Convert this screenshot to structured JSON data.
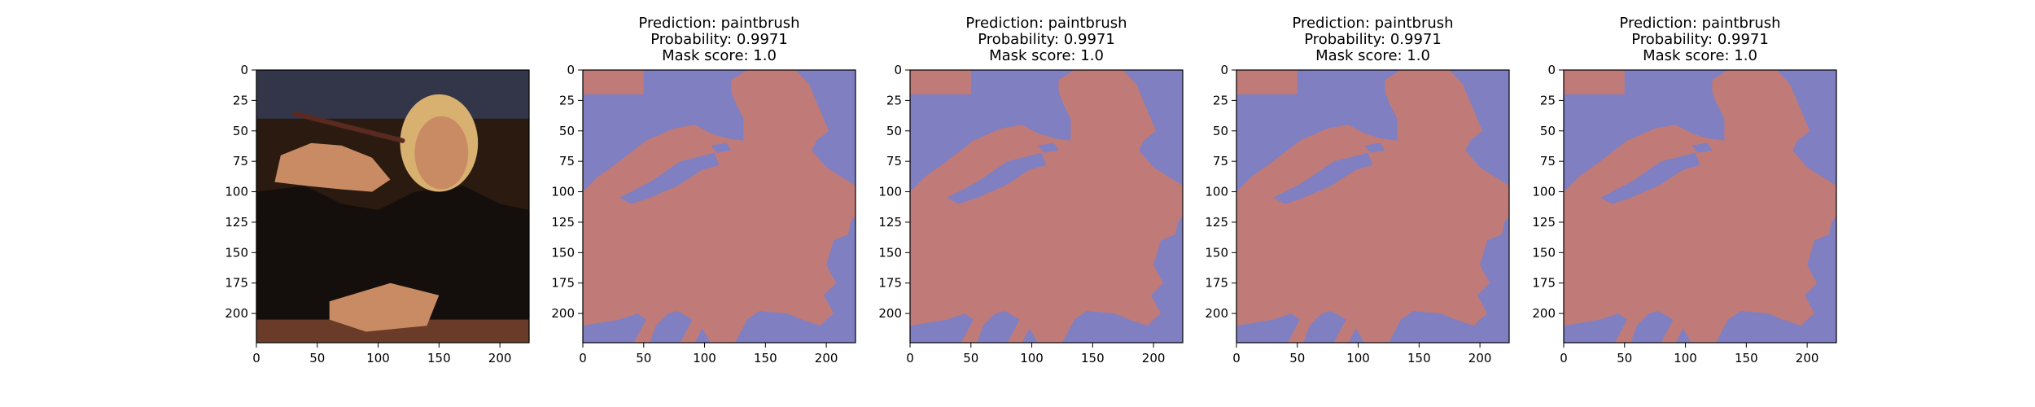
{
  "colors": {
    "mask_foreground": "#c07b79",
    "mask_background": "#7f7fc1",
    "axes_frame": "#000000",
    "photo_background_dark": "#2a1a10",
    "photo_jacket": "#140f0c",
    "photo_skin": "#c98b63",
    "photo_hair": "#d8b070",
    "photo_table": "#6b3b2a"
  },
  "chart_data": [
    {
      "type": "image",
      "content": "photo-woman-with-paintbrush",
      "title": [],
      "xlim": [
        0,
        224
      ],
      "ylim": [
        224,
        0
      ],
      "xticks": [
        0,
        50,
        100,
        150,
        200
      ],
      "yticks": [
        0,
        25,
        50,
        75,
        100,
        125,
        150,
        175,
        200
      ]
    },
    {
      "type": "image",
      "content": "segmentation-mask-overlay",
      "title": [
        "Prediction: paintbrush",
        "Probability: 0.9971",
        "Mask score: 1.0"
      ],
      "xlim": [
        0,
        224
      ],
      "ylim": [
        224,
        0
      ],
      "xticks": [
        0,
        50,
        100,
        150,
        200
      ],
      "yticks": [
        0,
        25,
        50,
        75,
        100,
        125,
        150,
        175,
        200
      ]
    },
    {
      "type": "image",
      "content": "segmentation-mask-overlay",
      "title": [
        "Prediction: paintbrush",
        "Probability: 0.9971",
        "Mask score: 1.0"
      ],
      "xlim": [
        0,
        224
      ],
      "ylim": [
        224,
        0
      ],
      "xticks": [
        0,
        50,
        100,
        150,
        200
      ],
      "yticks": [
        0,
        25,
        50,
        75,
        100,
        125,
        150,
        175,
        200
      ]
    },
    {
      "type": "image",
      "content": "segmentation-mask-overlay",
      "title": [
        "Prediction: paintbrush",
        "Probability: 0.9971",
        "Mask score: 1.0"
      ],
      "xlim": [
        0,
        224
      ],
      "ylim": [
        224,
        0
      ],
      "xticks": [
        0,
        50,
        100,
        150,
        200
      ],
      "yticks": [
        0,
        25,
        50,
        75,
        100,
        125,
        150,
        175,
        200
      ]
    },
    {
      "type": "image",
      "content": "segmentation-mask-overlay",
      "title": [
        "Prediction: paintbrush",
        "Probability: 0.9971",
        "Mask score: 1.0"
      ],
      "xlim": [
        0,
        224
      ],
      "ylim": [
        224,
        0
      ],
      "xticks": [
        0,
        50,
        100,
        150,
        200
      ],
      "yticks": [
        0,
        25,
        50,
        75,
        100,
        125,
        150,
        175,
        200
      ]
    }
  ]
}
